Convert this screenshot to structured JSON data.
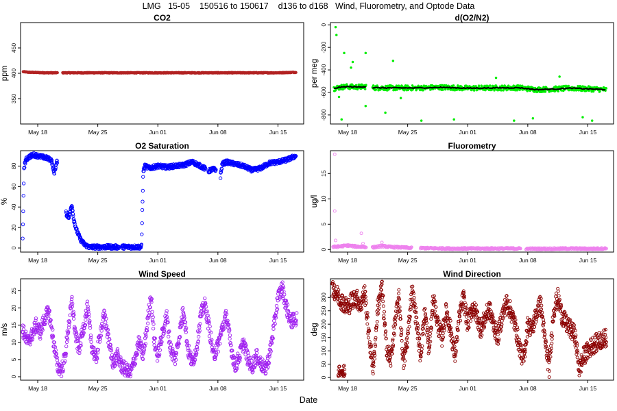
{
  "figure": {
    "title": "LMG   15-05    150516 to 150617    d136 to d168   Wind, Fluorometry, and Optode Data",
    "xlabel": "Date"
  },
  "chart_data": [
    {
      "id": "co2",
      "type": "scatter",
      "title": "CO2",
      "ylabel": "ppm",
      "color": "#b22222",
      "xlim": [
        136,
        169
      ],
      "ylim": [
        300,
        500
      ],
      "yticks": [
        350,
        400,
        450
      ],
      "ytick_labels": [
        "350",
        "400",
        "450"
      ],
      "xticks": [
        138,
        145,
        152,
        159,
        166
      ],
      "xtick_labels": [
        "May 18",
        "May 25",
        "Jun 01",
        "Jun 08",
        "Jun 15"
      ],
      "segments": [
        {
          "x": [
            136.3,
            137,
            138,
            139,
            140.3
          ],
          "y": [
            403,
            402,
            401.5,
            401,
            401
          ]
        },
        {
          "x": [
            140.9,
            142,
            145,
            148,
            151,
            154,
            157,
            160,
            163,
            166,
            168.1
          ],
          "y": [
            401,
            401,
            401,
            401,
            401,
            401,
            401,
            401,
            401,
            401,
            402
          ]
        }
      ]
    },
    {
      "id": "do2n2",
      "type": "scatter",
      "title": "d(O2/N2)",
      "ylabel": "per meg",
      "color": "#00ee00",
      "line_color": "#000000",
      "xlim": [
        136,
        169
      ],
      "ylim": [
        -880,
        20
      ],
      "yticks": [
        -800,
        -600,
        -400,
        -200,
        0
      ],
      "ytick_labels": [
        "-800",
        "-600",
        "-400",
        "-200",
        "0"
      ],
      "xticks": [
        138,
        145,
        152,
        159,
        166
      ],
      "xtick_labels": [
        "May 18",
        "May 25",
        "Jun 01",
        "Jun 08",
        "Jun 15"
      ],
      "segments": [
        {
          "x": [
            136.4,
            137,
            138,
            139,
            140.2
          ],
          "y": [
            -565,
            -555,
            -548,
            -552,
            -548
          ]
        },
        {
          "x": [
            140.9,
            143,
            146,
            149,
            152,
            155,
            158,
            160,
            162,
            164,
            166,
            168.2
          ],
          "y": [
            -558,
            -560,
            -560,
            -555,
            -562,
            -560,
            -558,
            -575,
            -570,
            -562,
            -568,
            -575
          ]
        }
      ],
      "outliers": [
        {
          "x": 136.6,
          "y": -20
        },
        {
          "x": 136.7,
          "y": -90
        },
        {
          "x": 137.6,
          "y": -250
        },
        {
          "x": 138.4,
          "y": -380
        },
        {
          "x": 138.6,
          "y": -330
        },
        {
          "x": 140.1,
          "y": -250
        },
        {
          "x": 140.1,
          "y": -720
        },
        {
          "x": 137.0,
          "y": -640
        },
        {
          "x": 137.3,
          "y": -840
        },
        {
          "x": 143.3,
          "y": -320
        },
        {
          "x": 146.6,
          "y": -850
        },
        {
          "x": 150.4,
          "y": -840
        },
        {
          "x": 155.3,
          "y": -470
        },
        {
          "x": 157.4,
          "y": -850
        },
        {
          "x": 159.6,
          "y": -830
        },
        {
          "x": 162.7,
          "y": -460
        },
        {
          "x": 165.4,
          "y": -820
        },
        {
          "x": 166.5,
          "y": -850
        },
        {
          "x": 142.4,
          "y": -780
        },
        {
          "x": 144.2,
          "y": -650
        }
      ]
    },
    {
      "id": "o2sat",
      "type": "scatter",
      "title": "O2 Saturation",
      "ylabel": "%",
      "color": "#0000ff",
      "xlim": [
        136,
        169
      ],
      "ylim": [
        -4,
        95
      ],
      "yticks": [
        0,
        20,
        40,
        60,
        80
      ],
      "ytick_labels": [
        "0",
        "20",
        "40",
        "60",
        "80"
      ],
      "xticks": [
        138,
        145,
        152,
        159,
        166
      ],
      "xtick_labels": [
        "May 18",
        "May 25",
        "Jun 01",
        "Jun 08",
        "Jun 15"
      ],
      "segments": [
        {
          "x": [
            136.25,
            136.3,
            136.4,
            136.6,
            137,
            137.5,
            138,
            138.5,
            139,
            139.6,
            139.9,
            140.3
          ],
          "y": [
            8,
            30,
            78,
            86,
            89,
            91,
            90,
            89,
            88,
            86,
            73,
            86
          ]
        },
        {
          "x": [
            141.3,
            141.6,
            141.8,
            142,
            142.2,
            142.5,
            143,
            143.5,
            144,
            144.5
          ],
          "y": [
            34,
            30,
            36,
            42,
            28,
            18,
            8,
            3,
            1,
            1
          ]
        },
        {
          "x": [
            144.5,
            146,
            147.5
          ],
          "y": [
            1,
            1,
            1
          ]
        },
        {
          "x": [
            147.8,
            149,
            150.1
          ],
          "y": [
            1,
            1,
            1
          ]
        },
        {
          "x": [
            150.1,
            150.2,
            150.3,
            150.5,
            151,
            152,
            153,
            154,
            155,
            156,
            157,
            157.6
          ],
          "y": [
            2,
            40,
            75,
            80,
            78,
            80,
            79,
            80,
            81,
            84,
            80,
            77
          ]
        },
        {
          "x": [
            157.9,
            158.4,
            158.8
          ],
          "y": [
            75,
            77,
            76
          ]
        },
        {
          "x": [
            159.3,
            159.5,
            160,
            161,
            162,
            163,
            164,
            165,
            166,
            167,
            168.1
          ],
          "y": [
            70,
            82,
            84,
            82,
            80,
            76,
            78,
            83,
            84,
            86,
            90
          ]
        }
      ]
    },
    {
      "id": "fluor",
      "type": "scatter",
      "title": "Fluorometry",
      "ylabel": "ug/l",
      "color": "#ee82ee",
      "xlim": [
        136,
        169
      ],
      "ylim": [
        -0.5,
        19.5
      ],
      "yticks": [
        0,
        5,
        10,
        15
      ],
      "ytick_labels": [
        "0",
        "5",
        "10",
        "15"
      ],
      "xticks": [
        138,
        145,
        152,
        159,
        166
      ],
      "xtick_labels": [
        "May 18",
        "May 25",
        "Jun 01",
        "Jun 08",
        "Jun 15"
      ],
      "segments": [
        {
          "x": [
            136.3,
            137,
            138,
            139,
            140.2
          ],
          "y": [
            0.5,
            0.6,
            0.8,
            0.6,
            0.5
          ]
        },
        {
          "x": [
            140.9,
            142,
            143,
            144.5,
            145.5
          ],
          "y": [
            0.4,
            0.7,
            0.5,
            0.4,
            0.3
          ]
        },
        {
          "x": [
            146.5,
            148,
            150,
            152,
            154,
            156,
            158.2
          ],
          "y": [
            0.3,
            0.25,
            0.2,
            0.2,
            0.2,
            0.2,
            0.2
          ]
        },
        {
          "x": [
            158.8,
            160,
            162,
            164,
            166,
            168.2
          ],
          "y": [
            0.15,
            0.15,
            0.15,
            0.2,
            0.15,
            0.2
          ]
        }
      ],
      "outliers": [
        {
          "x": 136.5,
          "y": 18.8
        },
        {
          "x": 136.5,
          "y": 7.6
        },
        {
          "x": 136.6,
          "y": 1.8
        },
        {
          "x": 139.6,
          "y": 3.2
        },
        {
          "x": 139.8,
          "y": 1.2
        },
        {
          "x": 142.0,
          "y": 1.4
        }
      ]
    },
    {
      "id": "wspd",
      "type": "scatter",
      "title": "Wind Speed",
      "ylabel": "m/s",
      "color": "#a020f0",
      "xlim": [
        136,
        169
      ],
      "ylim": [
        -1,
        28.5
      ],
      "yticks": [
        0,
        5,
        10,
        15,
        20,
        25
      ],
      "ytick_labels": [
        "0",
        "5",
        "10",
        "15",
        "20",
        "25"
      ],
      "xticks": [
        138,
        145,
        152,
        159,
        166
      ],
      "xtick_labels": [
        "May 18",
        "May 25",
        "Jun 01",
        "Jun 08",
        "Jun 15"
      ],
      "series": [
        {
          "x": [
            136.2,
            136.8,
            137.3,
            137.8,
            138.3,
            138.8,
            139.3,
            139.8,
            140.3,
            140.8,
            141.2,
            141.6,
            142,
            142.4,
            142.8,
            143.3,
            143.8,
            144.3,
            144.8,
            145.3,
            145.8,
            146.3,
            146.8,
            147.3,
            147.8,
            148.3,
            148.8,
            149.3,
            149.8,
            150.3,
            150.8,
            151.2,
            151.6,
            152,
            152.5,
            153,
            153.5,
            154,
            154.5,
            155,
            155.5,
            156,
            156.5,
            157,
            157.5,
            158,
            158.5,
            159,
            159.5,
            160,
            160.5,
            161,
            161.5,
            162,
            162.5,
            163,
            163.5,
            164,
            164.5,
            165,
            165.5,
            166,
            166.5,
            167,
            167.5,
            168.2
          ],
          "y": [
            14,
            10,
            12,
            15,
            13,
            17,
            19,
            11,
            3,
            2,
            6,
            15,
            22,
            12,
            8,
            14,
            20,
            9,
            5,
            13,
            18,
            10,
            4,
            6,
            3,
            2,
            1,
            5,
            10,
            6,
            16,
            24,
            10,
            6,
            12,
            18,
            8,
            5,
            12,
            20,
            8,
            4,
            8,
            18,
            21,
            14,
            6,
            9,
            14,
            18,
            9,
            3,
            6,
            10,
            5,
            3,
            6,
            4,
            2,
            6,
            14,
            23,
            26,
            20,
            16,
            17
          ]
        }
      ]
    },
    {
      "id": "wdir",
      "type": "scatter",
      "title": "Wind Direction",
      "ylabel": "deg",
      "color": "#8b0000",
      "xlim": [
        136,
        169
      ],
      "ylim": [
        -10,
        370
      ],
      "yticks": [
        0,
        50,
        100,
        150,
        200,
        250,
        300
      ],
      "ytick_labels": [
        "0",
        "50",
        "100",
        "150",
        "200",
        "250",
        "300"
      ],
      "xticks": [
        138,
        145,
        152,
        159,
        166
      ],
      "xtick_labels": [
        "May 18",
        "May 25",
        "Jun 01",
        "Jun 08",
        "Jun 15"
      ],
      "series": [
        {
          "x": [
            136.2,
            136.6,
            137,
            137.5,
            138,
            138.5,
            139,
            139.5,
            140,
            140.5,
            141,
            141.5,
            142,
            142.5,
            143,
            143.5,
            144,
            144.5,
            145,
            145.5,
            146,
            146.5,
            147,
            147.5,
            148,
            148.5,
            149,
            149.5,
            150,
            150.5,
            151,
            151.5,
            152,
            152.5,
            153,
            153.5,
            154,
            154.5,
            155,
            155.5,
            156,
            156.5,
            157,
            157.5,
            158,
            158.5,
            159,
            159.5,
            160,
            160.5,
            161,
            161.5,
            162,
            162.5,
            163,
            163.5,
            164,
            164.5,
            165,
            165.5,
            166,
            166.5,
            167,
            167.5,
            168.2
          ],
          "y": [
            340,
            320,
            300,
            280,
            260,
            290,
            300,
            270,
            320,
            150,
            30,
            260,
            340,
            120,
            60,
            200,
            300,
            50,
            150,
            330,
            220,
            80,
            250,
            100,
            300,
            200,
            150,
            250,
            180,
            80,
            220,
            300,
            200,
            260,
            240,
            180,
            220,
            260,
            200,
            150,
            230,
            280,
            250,
            200,
            120,
            60,
            200,
            180,
            240,
            280,
            140,
            30,
            250,
            300,
            230,
            200,
            180,
            160,
            30,
            80,
            100,
            120,
            130,
            140,
            150
          ]
        },
        {
          "x": [
            136.9,
            137.1,
            137.3,
            137.5,
            137.7
          ],
          "y": [
            5,
            10,
            2,
            20,
            8
          ]
        }
      ]
    }
  ]
}
